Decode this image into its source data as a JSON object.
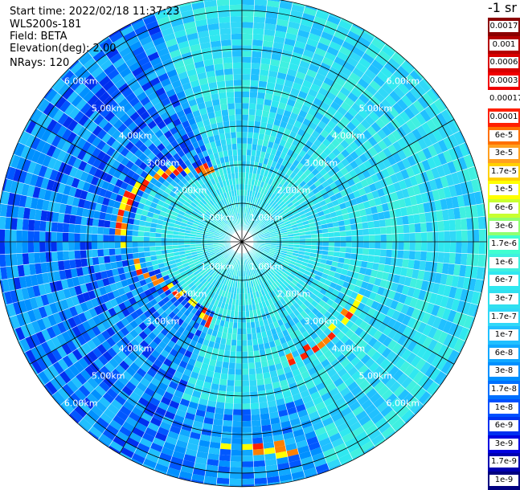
{
  "header": {
    "start_time": "Start time: 2022/02/18 11:37:23",
    "instrument": "WLS200s-181",
    "field": "Field: BETA",
    "elevation": "Elevation(deg): 2.00",
    "nrays": "NRays: 120"
  },
  "colorbar": {
    "unit": "-1 sr",
    "labels": [
      "0.0017",
      "0.001",
      "0.0006",
      "0.0003",
      "0.00017",
      "0.0001",
      "6e-5",
      "3e-5",
      "1.7e-5",
      "1e-5",
      "6e-6",
      "3e-6",
      "1.7e-6",
      "1e-6",
      "6e-7",
      "3e-7",
      "1.7e-7",
      "1e-7",
      "6e-8",
      "3e-8",
      "1.7e-8",
      "1e-8",
      "6e-9",
      "3e-9",
      "1.7e-9",
      "1e-9"
    ],
    "colors": [
      "#8b0000",
      "#b40000",
      "#d80000",
      "#f00000",
      "#ffffff",
      "#ff2000",
      "#ff7000",
      "#ffa020",
      "#ffd000",
      "#ffff00",
      "#c8ff30",
      "#90ff70",
      "#40ffd0",
      "#40f0e0",
      "#30e8f0",
      "#30e0f0",
      "#30d8f8",
      "#20c0ff",
      "#10a8ff",
      "#0090ff",
      "#0070ff",
      "#0050ff",
      "#0030f0",
      "#0000e0",
      "#0000b0",
      "#000080"
    ]
  },
  "chart_data": {
    "type": "ppi",
    "range_rings_km": [
      1,
      2,
      3,
      4,
      5,
      6
    ],
    "ring_labels": [
      "1.00km",
      "2.00km",
      "3.00km",
      "4.00km",
      "5.00km",
      "6.00km"
    ],
    "n_rays": 120,
    "elevation_deg": 2.0,
    "max_range_km": 6.35
  }
}
